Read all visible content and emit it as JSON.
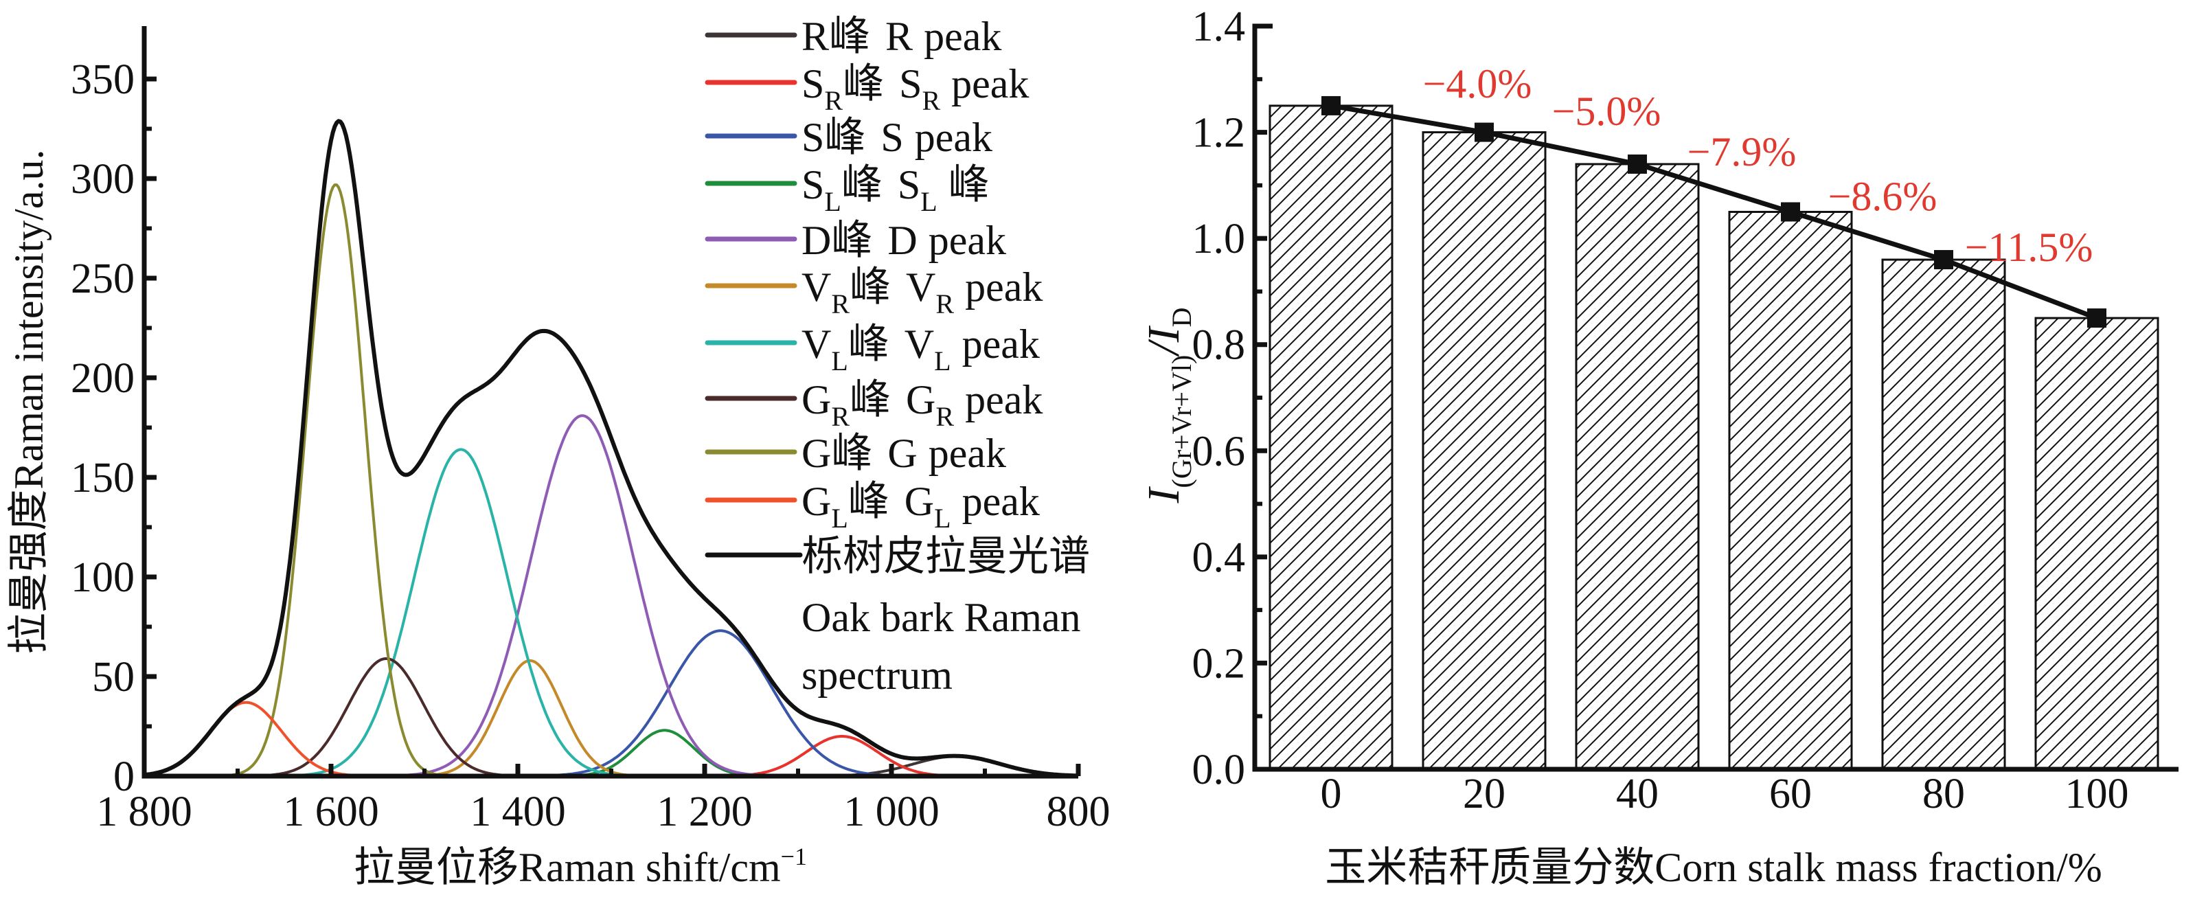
{
  "figure": {
    "left_panel": {
      "yaxis_title_cn": "拉曼强度",
      "yaxis_title_en": "Raman intensity/a.u.",
      "xaxis_title_cn": "拉曼位移",
      "xaxis_title_en": "Raman shift/cm",
      "xaxis_title_sup": "−1"
    },
    "right_panel": {
      "yaxis_title_main": "I",
      "yaxis_title_sub": "(Gr+Vr+Vl)",
      "yaxis_title_slash": "/I",
      "yaxis_title_sub2": "D",
      "xaxis_title_cn": "玉米秸秆质量分数",
      "xaxis_title_en": "Corn stalk mass fraction/%"
    }
  },
  "chart_data": [
    {
      "type": "line",
      "title": "",
      "xlabel": "拉曼位移Raman shift/cm⁻¹",
      "ylabel": "拉曼强度Raman intensity/a.u.",
      "xlim": [
        1800,
        800
      ],
      "ylim": [
        0,
        370
      ],
      "x_reversed": true,
      "xticks": [
        1800,
        1600,
        1400,
        1200,
        1000,
        800
      ],
      "xtick_labels": [
        "1 800",
        "1 600",
        "1 400",
        "1 200",
        "1 000",
        "800"
      ],
      "xminor_step": 100,
      "yticks": [
        0,
        50,
        100,
        150,
        200,
        250,
        300,
        350
      ],
      "ytick_labels": [
        "0",
        "50",
        "100",
        "150",
        "200",
        "250",
        "300",
        "350"
      ],
      "yminor_step": 25,
      "grid": false,
      "legend_position": "top-right",
      "series": [
        {
          "name": "R峰 R peak",
          "legend": {
            "main": "R",
            "sub": "",
            "cn": "峰",
            "en_main": "R",
            "en_sub": "",
            "en_tail": "peak"
          },
          "color": "#3d3535",
          "center": 930,
          "amplitude": 10,
          "fwhm": 110
        },
        {
          "name": "SR峰 SR peak",
          "legend": {
            "main": "S",
            "sub": "R",
            "cn": "峰",
            "en_main": "S",
            "en_sub": "R",
            "en_tail": "peak"
          },
          "color": "#e8322e",
          "center": 1053,
          "amplitude": 20,
          "fwhm": 90
        },
        {
          "name": "S峰 S peak",
          "legend": {
            "main": "S",
            "sub": "",
            "cn": "峰",
            "en_main": "S",
            "en_sub": "",
            "en_tail": "peak"
          },
          "color": "#3a56a8",
          "center": 1183,
          "amplitude": 73,
          "fwhm": 130
        },
        {
          "name": "SL峰 SL峰",
          "legend": {
            "main": "S",
            "sub": "L",
            "cn": "峰",
            "en_main": "S",
            "en_sub": "L",
            "en_tail": "峰"
          },
          "color": "#1f8e3c",
          "center": 1243,
          "amplitude": 23,
          "fwhm": 75
        },
        {
          "name": "D峰 D peak",
          "legend": {
            "main": "D",
            "sub": "",
            "cn": "峰",
            "en_main": "D",
            "en_sub": "",
            "en_tail": "peak"
          },
          "color": "#8e5bb5",
          "center": 1331,
          "amplitude": 181,
          "fwhm": 129
        },
        {
          "name": "VR峰 VR peak",
          "legend": {
            "main": "V",
            "sub": "R",
            "cn": "峰",
            "en_main": "V",
            "en_sub": "R",
            "en_tail": "peak"
          },
          "color": "#c48a2a",
          "center": 1387,
          "amplitude": 58,
          "fwhm": 80
        },
        {
          "name": "VL峰 VL peak",
          "legend": {
            "main": "V",
            "sub": "L",
            "cn": "峰",
            "en_main": "V",
            "en_sub": "L",
            "en_tail": "peak"
          },
          "color": "#2ab3a8",
          "center": 1461,
          "amplitude": 164,
          "fwhm": 118
        },
        {
          "name": "GR峰 GR peak",
          "legend": {
            "main": "G",
            "sub": "R",
            "cn": "峰",
            "en_main": "G",
            "en_sub": "R",
            "en_tail": "peak"
          },
          "color": "#4a2a2a",
          "center": 1541,
          "amplitude": 59,
          "fwhm": 95
        },
        {
          "name": "G峰 G peak",
          "legend": {
            "main": "G",
            "sub": "",
            "cn": "峰",
            "en_main": "G",
            "en_sub": "",
            "en_tail": "peak"
          },
          "color": "#8a8a30",
          "center": 1595,
          "amplitude": 297,
          "fwhm": 74
        },
        {
          "name": "GL峰 GL peak",
          "legend": {
            "main": "G",
            "sub": "L",
            "cn": "峰",
            "en_main": "G",
            "en_sub": "L",
            "en_tail": "peak"
          },
          "color": "#f0502a",
          "center": 1691,
          "amplitude": 37,
          "fwhm": 90
        }
      ],
      "spectrum": {
        "name": "栎树皮拉曼光谱 Oak bark Raman spectrum",
        "legend_cn": "栎树皮拉曼光谱",
        "legend_en_line1": "Oak bark Raman",
        "legend_en_line2": "spectrum",
        "color": "#111111",
        "key_points": [
          {
            "x": 1800,
            "y": 0
          },
          {
            "x": 1589,
            "y": 333
          },
          {
            "x": 1500,
            "y": 182
          },
          {
            "x": 1373,
            "y": 233
          },
          {
            "x": 800,
            "y": 0
          }
        ]
      }
    },
    {
      "type": "bar",
      "title": "",
      "xlabel": "玉米秸秆质量分数Corn stalk mass fraction/%",
      "ylabel": "I(Gr+Vr+Vl)/ID",
      "categories": [
        "0",
        "20",
        "40",
        "60",
        "80",
        "100"
      ],
      "values": [
        1.25,
        1.2,
        1.14,
        1.05,
        0.96,
        0.85
      ],
      "line_overlay": true,
      "marker": "square",
      "bar_fill": "hatched",
      "ylim": [
        0,
        1.4
      ],
      "yticks": [
        0.0,
        0.2,
        0.4,
        0.6,
        0.8,
        1.0,
        1.2,
        1.4
      ],
      "ytick_labels": [
        "0.0",
        "0.2",
        "0.4",
        "0.6",
        "0.8",
        "1.0",
        "1.2",
        "1.4"
      ],
      "yminor_step": 0.1,
      "grid": false,
      "annotations": [
        {
          "between": [
            "0",
            "20"
          ],
          "text": "−4.0%"
        },
        {
          "between": [
            "20",
            "40"
          ],
          "text": "−5.0%"
        },
        {
          "between": [
            "40",
            "60"
          ],
          "text": "−7.9%"
        },
        {
          "between": [
            "60",
            "80"
          ],
          "text": "−8.6%"
        },
        {
          "between": [
            "80",
            "100"
          ],
          "text": "−11.5%"
        }
      ],
      "annotation_color": "#e03a30"
    }
  ]
}
